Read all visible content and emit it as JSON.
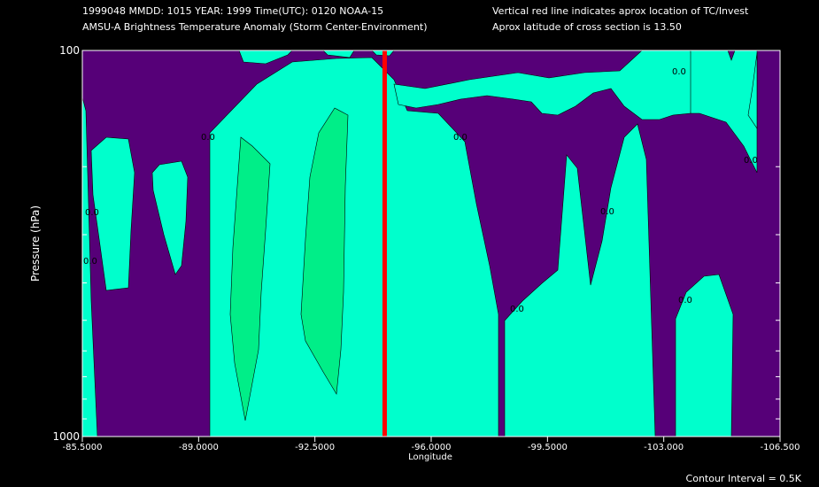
{
  "header": {
    "line1_left": "1999048  MMDD: 1015 YEAR: 1999 Time(UTC): 0120 NOAA-15",
    "line2_left": "AMSU-A Brightness Temperature Anomaly (Storm Center-Environment)",
    "line1_right": "Vertical red line indicates aprox location of TC/Invest",
    "line2_right": "Aprox latitude of cross section is 13.50"
  },
  "footer": {
    "contour_interval": "Contour Interval = 0.5K"
  },
  "colors": {
    "background": "#000000",
    "neg": "#560078",
    "zero": "#00ffcc",
    "pos": "#00ee88",
    "storm_line": "#ff0000",
    "axis": "#ffffff"
  },
  "chart_data": {
    "type": "contour",
    "xlabel": "Longitude",
    "ylabel": "Pressure (hPa)",
    "xlim": [
      -85.5,
      -106.5
    ],
    "ylim": [
      100,
      1000
    ],
    "y_scale": "log",
    "x_ticks": [
      "-85.5000",
      "-89.0000",
      "-92.5000",
      "-96.0000",
      "-99.5000",
      "-103.000",
      "-106.500"
    ],
    "y_ticks": [
      "100",
      "1000"
    ],
    "storm_longitude": -94.6,
    "legend": "none",
    "grid": false
  }
}
